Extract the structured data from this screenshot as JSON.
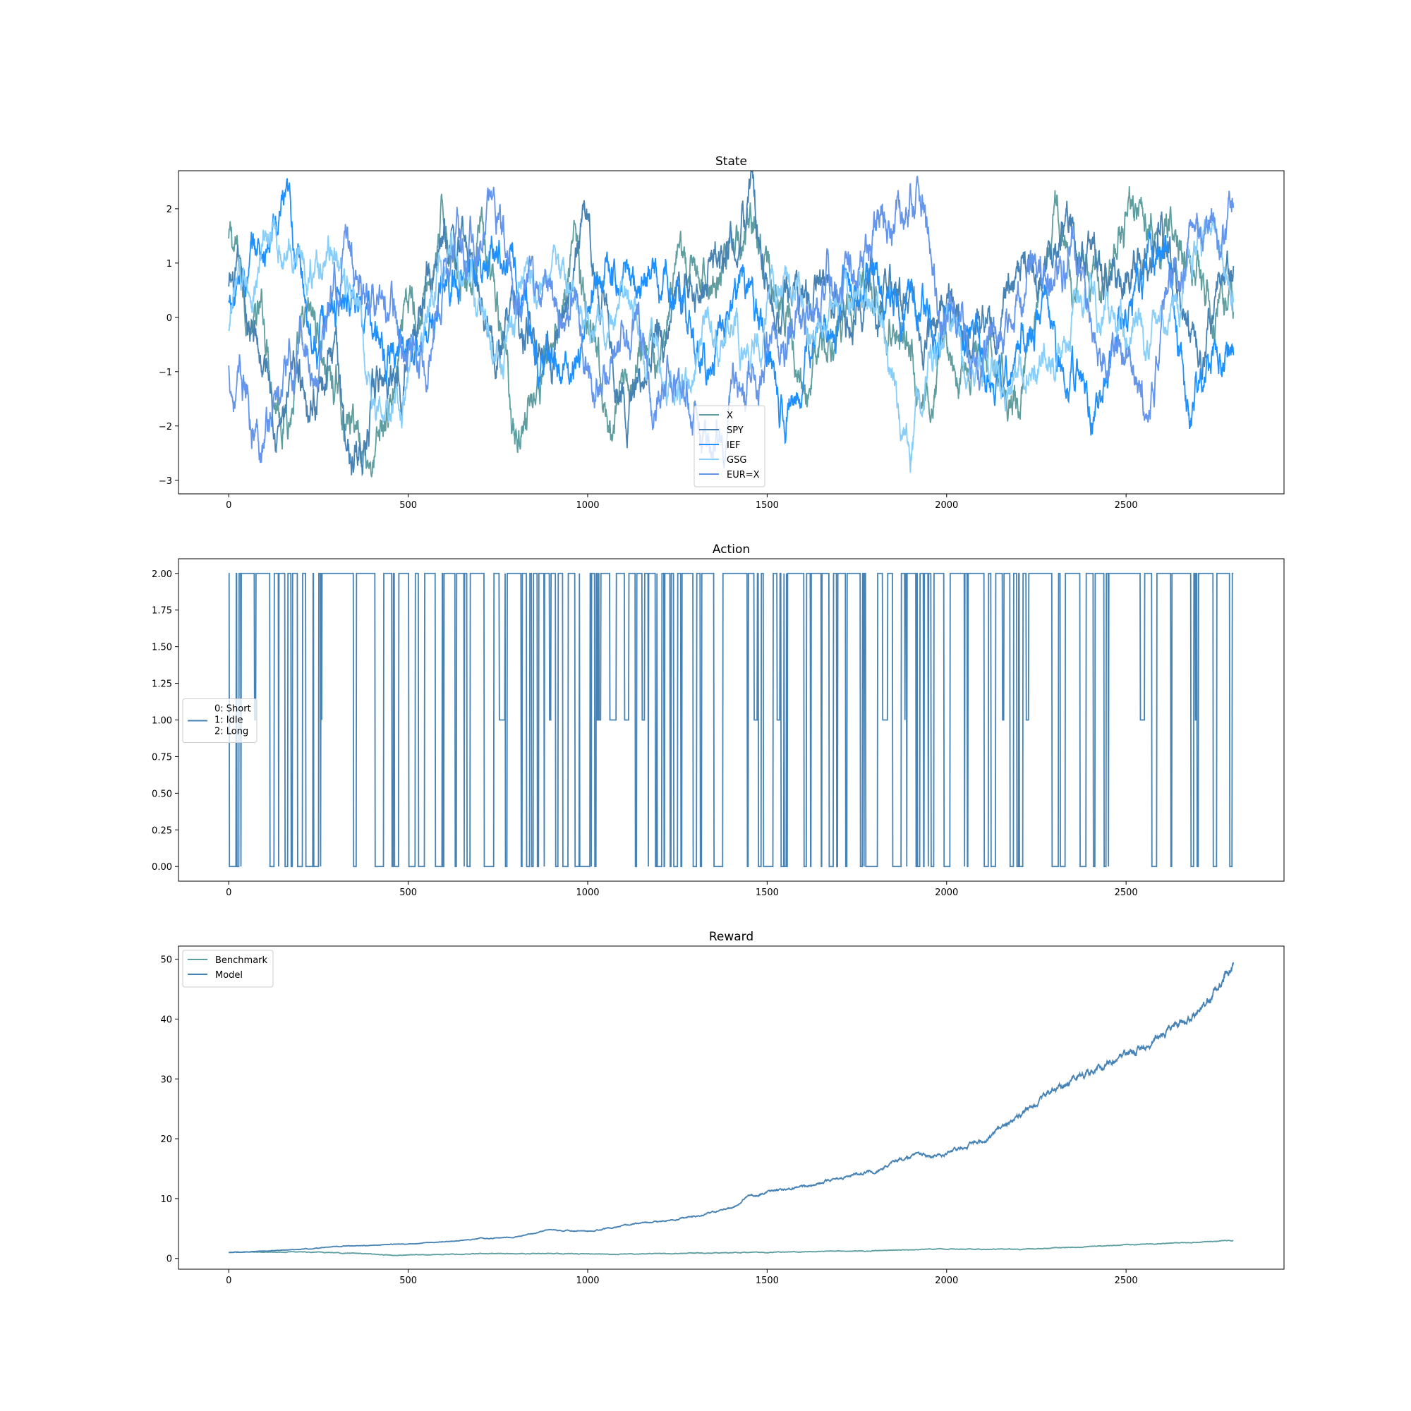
{
  "chart_data": [
    {
      "type": "line",
      "title": "State",
      "xlim": [
        -140,
        2940
      ],
      "ylim": [
        -3.25,
        2.7
      ],
      "xticks": [
        0,
        500,
        1000,
        1500,
        2000,
        2500
      ],
      "yticks": [
        -3,
        -2,
        -1,
        0,
        1,
        2
      ],
      "n_points": 2800,
      "legend_position": "lower-center",
      "series": [
        {
          "name": "X",
          "color": "#5f9ea0",
          "amplitude": 1.3,
          "anchors": [
            [
              0,
              1.4
            ],
            [
              60,
              0.2
            ],
            [
              150,
              -1.2
            ],
            [
              250,
              -0.6
            ],
            [
              330,
              -2.0
            ],
            [
              420,
              -2.4
            ],
            [
              500,
              -0.5
            ],
            [
              600,
              1.5
            ],
            [
              700,
              1.2
            ],
            [
              800,
              -2.2
            ],
            [
              900,
              -0.4
            ],
            [
              960,
              1.7
            ],
            [
              1050,
              -2.6
            ],
            [
              1150,
              -0.5
            ],
            [
              1300,
              0.3
            ],
            [
              1450,
              1.8
            ],
            [
              1600,
              -0.9
            ],
            [
              1800,
              0.4
            ],
            [
              1950,
              -0.5
            ],
            [
              2200,
              -1.4
            ],
            [
              2300,
              1.8
            ],
            [
              2420,
              0.8
            ],
            [
              2520,
              1.8
            ],
            [
              2650,
              1.0
            ],
            [
              2800,
              0.1
            ]
          ]
        },
        {
          "name": "SPY",
          "color": "#4682b4",
          "amplitude": 1.3,
          "anchors": [
            [
              0,
              0.5
            ],
            [
              80,
              -0.8
            ],
            [
              170,
              -1.8
            ],
            [
              280,
              -0.6
            ],
            [
              340,
              -2.5
            ],
            [
              430,
              -1.6
            ],
            [
              520,
              0.6
            ],
            [
              620,
              1.2
            ],
            [
              720,
              0.4
            ],
            [
              800,
              0.0
            ],
            [
              900,
              -0.6
            ],
            [
              1000,
              1.4
            ],
            [
              1100,
              -1.5
            ],
            [
              1200,
              -0.2
            ],
            [
              1300,
              0.5
            ],
            [
              1450,
              1.4
            ],
            [
              1550,
              0.2
            ],
            [
              1700,
              -0.4
            ],
            [
              1850,
              0.5
            ],
            [
              2000,
              -0.5
            ],
            [
              2150,
              -0.2
            ],
            [
              2300,
              1.2
            ],
            [
              2450,
              0.6
            ],
            [
              2600,
              1.6
            ],
            [
              2700,
              -0.4
            ],
            [
              2800,
              0.6
            ]
          ]
        },
        {
          "name": "IEF",
          "color": "#1e90ff",
          "amplitude": 1.2,
          "anchors": [
            [
              0,
              0.2
            ],
            [
              100,
              1.2
            ],
            [
              150,
              1.5
            ],
            [
              250,
              -0.2
            ],
            [
              350,
              0.9
            ],
            [
              420,
              -0.8
            ],
            [
              520,
              -0.7
            ],
            [
              650,
              0.8
            ],
            [
              760,
              1.5
            ],
            [
              870,
              -0.5
            ],
            [
              950,
              -1.4
            ],
            [
              1050,
              1.2
            ],
            [
              1200,
              0.5
            ],
            [
              1350,
              -0.8
            ],
            [
              1450,
              0.4
            ],
            [
              1550,
              -1.6
            ],
            [
              1700,
              0.4
            ],
            [
              1850,
              0.8
            ],
            [
              2000,
              -0.2
            ],
            [
              2150,
              -1.3
            ],
            [
              2250,
              0.3
            ],
            [
              2400,
              -2.1
            ],
            [
              2520,
              0.7
            ],
            [
              2620,
              0.9
            ],
            [
              2680,
              -1.8
            ],
            [
              2800,
              -0.3
            ]
          ]
        },
        {
          "name": "GSG",
          "color": "#87cefa",
          "amplitude": 1.1,
          "anchors": [
            [
              0,
              -0.3
            ],
            [
              100,
              1.1
            ],
            [
              200,
              1.3
            ],
            [
              300,
              1.3
            ],
            [
              380,
              -1.0
            ],
            [
              450,
              -2.0
            ],
            [
              560,
              0.3
            ],
            [
              650,
              0.8
            ],
            [
              750,
              -0.8
            ],
            [
              850,
              0.6
            ],
            [
              950,
              0.5
            ],
            [
              1050,
              -0.3
            ],
            [
              1150,
              -0.6
            ],
            [
              1250,
              -1.2
            ],
            [
              1350,
              -0.2
            ],
            [
              1450,
              -0.5
            ],
            [
              1550,
              0.5
            ],
            [
              1700,
              0.5
            ],
            [
              1800,
              0.4
            ],
            [
              1900,
              -2.3
            ],
            [
              2000,
              -0.5
            ],
            [
              2100,
              -1.2
            ],
            [
              2200,
              -1.0
            ],
            [
              2300,
              -0.6
            ],
            [
              2400,
              0.6
            ],
            [
              2550,
              -0.6
            ],
            [
              2700,
              1.5
            ],
            [
              2800,
              0.9
            ]
          ]
        },
        {
          "name": "EUR=X",
          "color": "#6495ed",
          "amplitude": 1.3,
          "anchors": [
            [
              0,
              -1.0
            ],
            [
              80,
              -1.9
            ],
            [
              150,
              -1.3
            ],
            [
              250,
              -0.6
            ],
            [
              330,
              1.0
            ],
            [
              420,
              0.7
            ],
            [
              500,
              -0.8
            ],
            [
              600,
              0.8
            ],
            [
              720,
              2.0
            ],
            [
              800,
              0.6
            ],
            [
              950,
              0.3
            ],
            [
              1050,
              -0.7
            ],
            [
              1200,
              -1.2
            ],
            [
              1350,
              -1.5
            ],
            [
              1500,
              -0.6
            ],
            [
              1600,
              0.0
            ],
            [
              1700,
              1.0
            ],
            [
              1800,
              2.0
            ],
            [
              1900,
              2.0
            ],
            [
              2000,
              0.5
            ],
            [
              2100,
              -0.5
            ],
            [
              2200,
              0.0
            ],
            [
              2350,
              1.4
            ],
            [
              2450,
              -0.6
            ],
            [
              2550,
              -1.7
            ],
            [
              2620,
              0.2
            ],
            [
              2700,
              1.7
            ],
            [
              2800,
              1.3
            ]
          ]
        }
      ]
    },
    {
      "type": "line",
      "title": "Action",
      "step": true,
      "xlim": [
        -140,
        2940
      ],
      "ylim": [
        -0.1,
        2.1
      ],
      "xticks": [
        0,
        500,
        1000,
        1500,
        2000,
        2500
      ],
      "yticks": [
        0.0,
        0.25,
        0.5,
        0.75,
        1.0,
        1.25,
        1.5,
        1.75,
        2.0
      ],
      "ytick_labels": [
        "0.00",
        "0.25",
        "0.50",
        "0.75",
        "1.00",
        "1.25",
        "1.50",
        "1.75",
        "2.00"
      ],
      "n_points": 2800,
      "levels": [
        0,
        1,
        2
      ],
      "legend_position": "center-left",
      "series": [
        {
          "name": "0: Short\n1: Idle\n2: Long",
          "color": "#4682b4"
        }
      ]
    },
    {
      "type": "line",
      "title": "Reward",
      "xlim": [
        -140,
        2940
      ],
      "ylim": [
        -1.8,
        52.2
      ],
      "xticks": [
        0,
        500,
        1000,
        1500,
        2000,
        2500
      ],
      "yticks": [
        0,
        10,
        20,
        30,
        40,
        50
      ],
      "n_points": 2800,
      "legend_position": "upper-left",
      "series": [
        {
          "name": "Benchmark",
          "color": "#5f9ea0",
          "anchors": [
            [
              0,
              1.0
            ],
            [
              200,
              1.1
            ],
            [
              350,
              0.9
            ],
            [
              450,
              0.5
            ],
            [
              700,
              0.8
            ],
            [
              900,
              0.8
            ],
            [
              1100,
              0.7
            ],
            [
              1300,
              0.9
            ],
            [
              1500,
              1.0
            ],
            [
              1800,
              1.3
            ],
            [
              2000,
              1.6
            ],
            [
              2200,
              1.5
            ],
            [
              2400,
              2.0
            ],
            [
              2600,
              2.5
            ],
            [
              2800,
              3.0
            ]
          ]
        },
        {
          "name": "Model",
          "color": "#4682b4",
          "anchors": [
            [
              0,
              1.0
            ],
            [
              100,
              1.2
            ],
            [
              200,
              1.5
            ],
            [
              300,
              2.0
            ],
            [
              400,
              2.2
            ],
            [
              500,
              2.4
            ],
            [
              600,
              2.8
            ],
            [
              700,
              3.3
            ],
            [
              800,
              3.6
            ],
            [
              900,
              4.8
            ],
            [
              1000,
              4.5
            ],
            [
              1100,
              5.5
            ],
            [
              1200,
              6.2
            ],
            [
              1300,
              7.0
            ],
            [
              1400,
              8.5
            ],
            [
              1450,
              10.5
            ],
            [
              1500,
              11.0
            ],
            [
              1600,
              12.0
            ],
            [
              1700,
              13.5
            ],
            [
              1800,
              14.5
            ],
            [
              1900,
              17.0
            ],
            [
              2000,
              17.5
            ],
            [
              2100,
              19.5
            ],
            [
              2200,
              24.0
            ],
            [
              2300,
              28.5
            ],
            [
              2400,
              31.0
            ],
            [
              2500,
              34.0
            ],
            [
              2600,
              37.5
            ],
            [
              2700,
              41.0
            ],
            [
              2800,
              49.0
            ]
          ]
        }
      ]
    }
  ]
}
